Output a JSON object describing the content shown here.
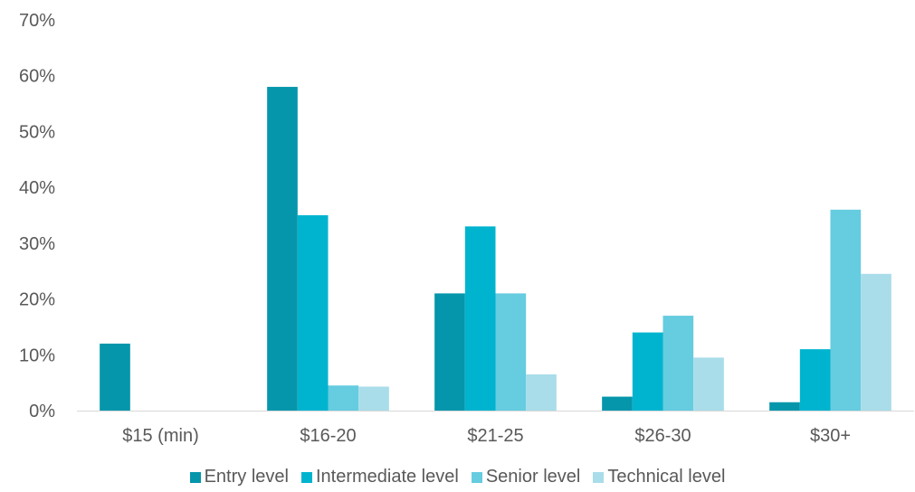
{
  "chart_data": {
    "type": "bar",
    "categories": [
      "$15 (min)",
      "$16-20",
      "$21-25",
      "$26-30",
      "$30+"
    ],
    "series": [
      {
        "name": "Entry level",
        "color": "#0596ab",
        "values": [
          12,
          58,
          21,
          2.5,
          1.5
        ]
      },
      {
        "name": "Intermediate level",
        "color": "#00b4cf",
        "values": [
          0,
          35,
          33,
          14,
          11
        ]
      },
      {
        "name": "Senior level",
        "color": "#66cce0",
        "values": [
          0,
          4.5,
          21,
          17,
          36
        ]
      },
      {
        "name": "Technical level",
        "color": "#a9dde9",
        "values": [
          0,
          4.3,
          6.5,
          9.5,
          24.5
        ]
      }
    ],
    "y_ticks": [
      "0%",
      "10%",
      "20%",
      "30%",
      "40%",
      "50%",
      "60%",
      "70%"
    ],
    "ylim": [
      0,
      70
    ],
    "ytick_step": 10,
    "grid": false,
    "legend_position": "bottom"
  }
}
